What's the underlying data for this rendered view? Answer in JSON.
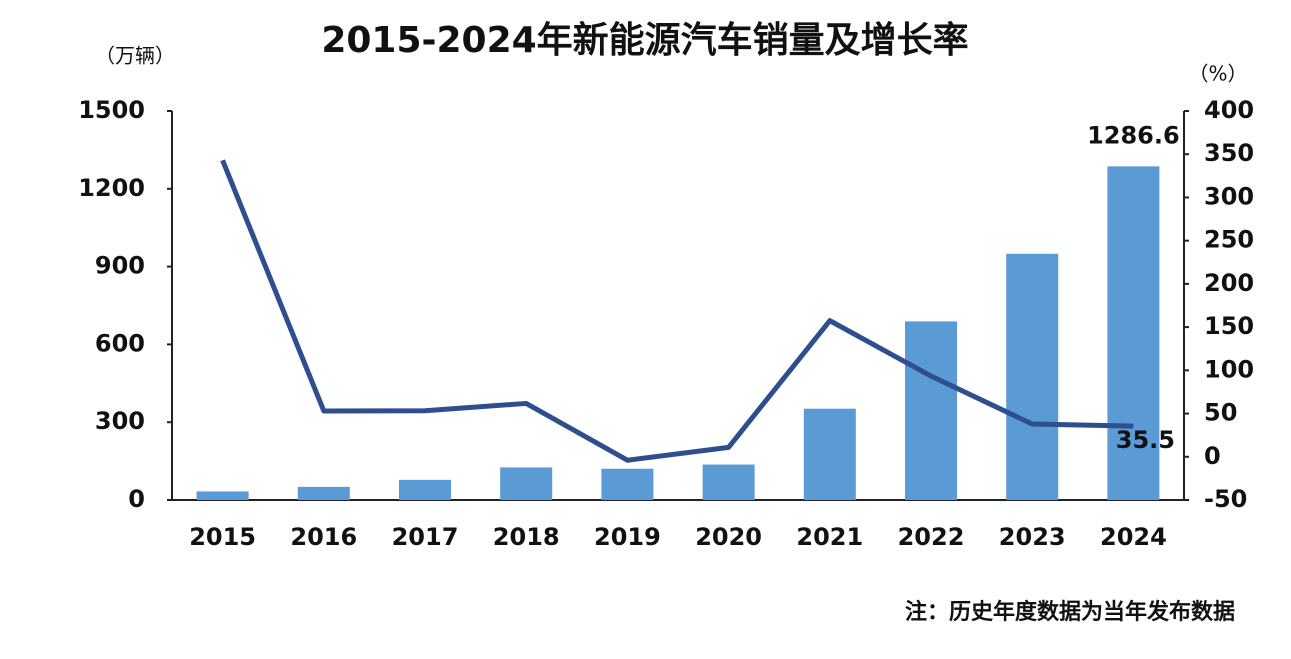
{
  "chart_data": {
    "type": "bar",
    "title": "2015-2024年新能源汽车销量及增长率",
    "ylabel": "（万辆）",
    "y2label": "（%）",
    "note": "注：历史年度数据为当年发布数据",
    "categories": [
      "2015",
      "2016",
      "2017",
      "2018",
      "2019",
      "2020",
      "2021",
      "2022",
      "2023",
      "2024"
    ],
    "series": [
      {
        "type": "bar",
        "color": "#5b9bd5",
        "values": [
          33.1,
          50.7,
          77.7,
          125.6,
          120.6,
          136.7,
          352.1,
          688.7,
          949.5,
          1286.6
        ]
      },
      {
        "type": "line",
        "axis": "y2",
        "color": "#2f4e8f",
        "values": [
          343,
          53,
          53.3,
          61.7,
          -4,
          10.9,
          157.5,
          93.4,
          37.9,
          35.5
        ]
      }
    ],
    "ylim": [
      0,
      1500
    ],
    "yticks": [
      0,
      300,
      600,
      900,
      1200,
      1500
    ],
    "y2lim": [
      -50,
      400
    ],
    "y2ticks": [
      -50,
      0,
      50,
      100,
      150,
      200,
      250,
      300,
      350,
      400
    ],
    "grid": false
  }
}
